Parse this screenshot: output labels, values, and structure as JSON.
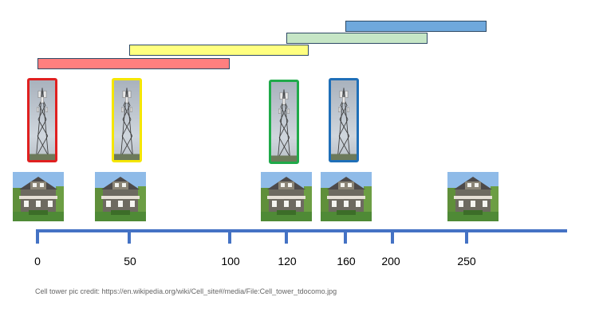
{
  "axis_ticks": [
    {
      "label": "0"
    },
    {
      "label": "50"
    },
    {
      "label": "100"
    },
    {
      "label": "120"
    },
    {
      "label": "160"
    },
    {
      "label": "200"
    },
    {
      "label": "250"
    }
  ],
  "houses": [
    {
      "position": 0
    },
    {
      "position": 50
    },
    {
      "position": 120
    },
    {
      "position": 150
    },
    {
      "position": 250
    }
  ],
  "towers": [
    {
      "color": "#e02020"
    },
    {
      "color": "#f5e600"
    },
    {
      "color": "#1faa4a"
    },
    {
      "color": "#1f6fb8"
    }
  ],
  "coverage_bars": [
    {
      "color": "#ff7f7f",
      "start": 0,
      "end": 105
    },
    {
      "color": "#ffff80",
      "start": 50,
      "end": 147
    },
    {
      "color": "#c6e6c6",
      "start": 135,
      "end": 210
    },
    {
      "color": "#6fa8dc",
      "start": 168,
      "end": 245
    }
  ],
  "credit": "Cell tower pic credit: https://en.wikipedia.org/wiki/Cell_site#/media/File:Cell_tower_tdocomo.jpg"
}
